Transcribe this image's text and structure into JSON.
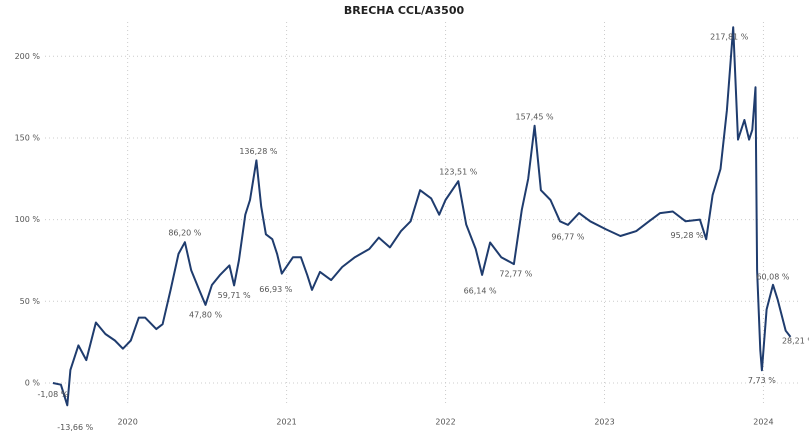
{
  "chart_data": {
    "type": "line",
    "title": "BRECHA CCL/A3500",
    "x": [
      2019.53,
      2019.58,
      2019.62,
      2019.64,
      2019.69,
      2019.74,
      2019.8,
      2019.86,
      2019.92,
      2019.97,
      2020.02,
      2020.07,
      2020.11,
      2020.18,
      2020.22,
      2020.27,
      2020.32,
      2020.36,
      2020.4,
      2020.45,
      2020.49,
      2020.53,
      2020.58,
      2020.64,
      2020.67,
      2020.7,
      2020.74,
      2020.77,
      2020.81,
      2020.84,
      2020.87,
      2020.91,
      2020.94,
      2020.97,
      2021.04,
      2021.09,
      2021.13,
      2021.16,
      2021.21,
      2021.28,
      2021.35,
      2021.43,
      2021.52,
      2021.58,
      2021.65,
      2021.72,
      2021.78,
      2021.84,
      2021.91,
      2021.96,
      2022.0,
      2022.08,
      2022.13,
      2022.19,
      2022.23,
      2022.28,
      2022.35,
      2022.43,
      2022.48,
      2022.52,
      2022.56,
      2022.6,
      2022.66,
      2022.72,
      2022.77,
      2022.84,
      2022.91,
      2023.01,
      2023.1,
      2023.2,
      2023.28,
      2023.35,
      2023.43,
      2023.51,
      2023.6,
      2023.64,
      2023.68,
      2023.73,
      2023.77,
      2023.81,
      2023.84,
      2023.88,
      2023.91,
      2023.93,
      2023.95,
      2023.96,
      2023.98,
      2023.99,
      2024.02,
      2024.06,
      2024.09,
      2024.14,
      2024.17
    ],
    "series": [
      {
        "name": "Brecha",
        "color": "#1f3c6e",
        "values": [
          0,
          -1.08,
          -13.66,
          8,
          23,
          14,
          37,
          30,
          26,
          21,
          26,
          40,
          40,
          33,
          36,
          57,
          79,
          86.2,
          69,
          57,
          47.8,
          60,
          66,
          72,
          59.71,
          75,
          103,
          112,
          136.28,
          108,
          91,
          88,
          79,
          66.93,
          77,
          77,
          66,
          57,
          68,
          63,
          71,
          77,
          82,
          89,
          83,
          93,
          99,
          118,
          113,
          103,
          112,
          123.51,
          97,
          82,
          66.14,
          86,
          77,
          72.77,
          106,
          125,
          157.45,
          118,
          112,
          99,
          96.77,
          104,
          99,
          94,
          90,
          93,
          99,
          104,
          105,
          99,
          100,
          88,
          115,
          131,
          167,
          217.81,
          149,
          161,
          149,
          155,
          181,
          69,
          20,
          7.73,
          45,
          60.08,
          51,
          32,
          28.21
        ]
      }
    ],
    "annotations": [
      {
        "x": 2019.58,
        "y": -1.08,
        "label": "-1,08 %"
      },
      {
        "x": 2019.62,
        "y": -13.66,
        "label": "-13,66 %"
      },
      {
        "x": 2020.36,
        "y": 86.2,
        "label": "86,20 %"
      },
      {
        "x": 2020.49,
        "y": 47.8,
        "label": "47,80 %"
      },
      {
        "x": 2020.67,
        "y": 59.71,
        "label": "59,71 %"
      },
      {
        "x": 2020.81,
        "y": 136.28,
        "label": "136,28 %"
      },
      {
        "x": 2020.97,
        "y": 66.93,
        "label": "66,93 %"
      },
      {
        "x": 2022.08,
        "y": 123.51,
        "label": "123,51 %"
      },
      {
        "x": 2022.23,
        "y": 66.14,
        "label": "66,14 %"
      },
      {
        "x": 2022.43,
        "y": 72.77,
        "label": "72,77 %"
      },
      {
        "x": 2022.56,
        "y": 157.45,
        "label": "157,45 %"
      },
      {
        "x": 2022.77,
        "y": 96.77,
        "label": "96,77 %"
      },
      {
        "x": 2023.62,
        "y": 95.28,
        "label": "95,28 %"
      },
      {
        "x": 2023.81,
        "y": 217.81,
        "label": "217,81 %"
      },
      {
        "x": 2023.99,
        "y": 7.73,
        "label": "7,73 %"
      },
      {
        "x": 2024.06,
        "y": 60.08,
        "label": "60,08 %"
      },
      {
        "x": 2024.17,
        "y": 28.21,
        "label": "28,21 %"
      }
    ],
    "xlim": [
      2019.48,
      2024.23
    ],
    "xticks": [
      2020,
      2021,
      2022,
      2023,
      2024
    ],
    "ylim": [
      -13.5,
      221
    ],
    "yticks": [
      {
        "value": 0,
        "label": "0 %"
      },
      {
        "value": 50,
        "label": "50 %"
      },
      {
        "value": 100,
        "label": "100 %"
      },
      {
        "value": 150,
        "label": "150 %"
      },
      {
        "value": 200,
        "label": "200 %"
      }
    ],
    "grid": true
  }
}
